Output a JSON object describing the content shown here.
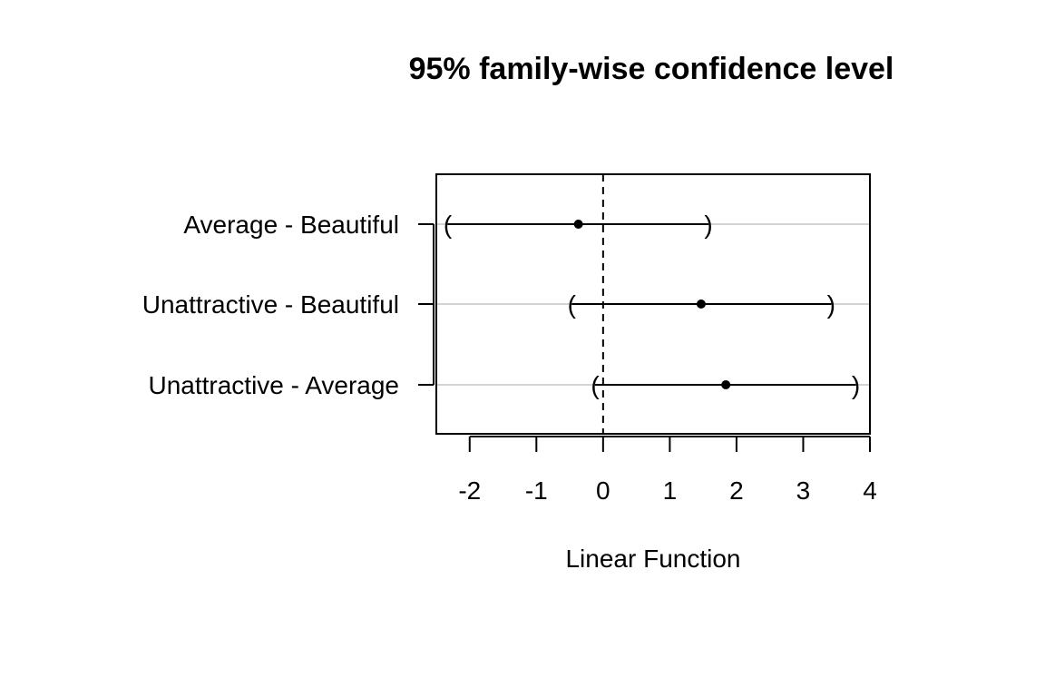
{
  "chart_data": {
    "type": "interval",
    "title": "95% family-wise confidence level",
    "xlabel": "Linear Function",
    "ylabel": "",
    "xlim": [
      -2.5,
      4.0
    ],
    "xticks": [
      -2,
      -1,
      0,
      1,
      2,
      3,
      4
    ],
    "reference_line": 0,
    "grid": "horizontal",
    "comparisons": [
      {
        "label": "Average - Beautiful",
        "estimate": -0.37,
        "lower": -2.33,
        "upper": 1.58
      },
      {
        "label": "Unattractive - Beautiful",
        "estimate": 1.47,
        "lower": -0.47,
        "upper": 3.42
      },
      {
        "label": "Unattractive - Average",
        "estimate": 1.84,
        "lower": -0.12,
        "upper": 3.79
      }
    ]
  }
}
